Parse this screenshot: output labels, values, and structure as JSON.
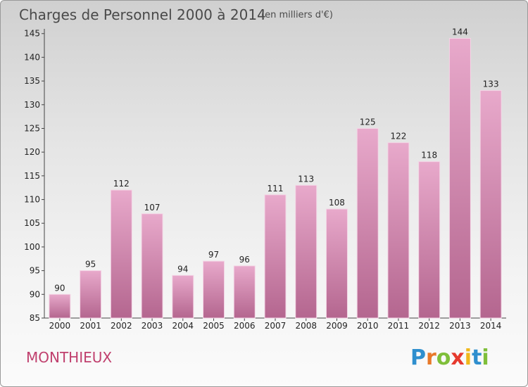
{
  "chart_data": {
    "type": "bar",
    "title": "Charges de Personnel 2000 à 2014",
    "subtitle": "(en milliers d'€)",
    "categories": [
      "2000",
      "2001",
      "2002",
      "2003",
      "2004",
      "2005",
      "2006",
      "2007",
      "2008",
      "2009",
      "2010",
      "2011",
      "2012",
      "2013",
      "2014"
    ],
    "values": [
      90,
      95,
      112,
      107,
      94,
      97,
      96,
      111,
      113,
      108,
      125,
      122,
      118,
      144,
      133
    ],
    "ylim": [
      85,
      146
    ],
    "yticks": [
      85,
      90,
      95,
      100,
      105,
      110,
      115,
      120,
      125,
      130,
      135,
      140,
      145
    ],
    "xlabel": "",
    "ylabel": "",
    "grid": false,
    "bar_color": "#c9709c"
  },
  "commune": "MONTHIEUX",
  "logo": {
    "text": "Proxiti",
    "letters": [
      "P",
      "r",
      "o",
      "x",
      "i",
      "t",
      "i"
    ],
    "letter_colors": [
      "#2f8fce",
      "#e8792a",
      "#7fbf3a",
      "#e63a2e",
      "#f0b81a",
      "#2f8fce",
      "#7fbf3a"
    ]
  }
}
